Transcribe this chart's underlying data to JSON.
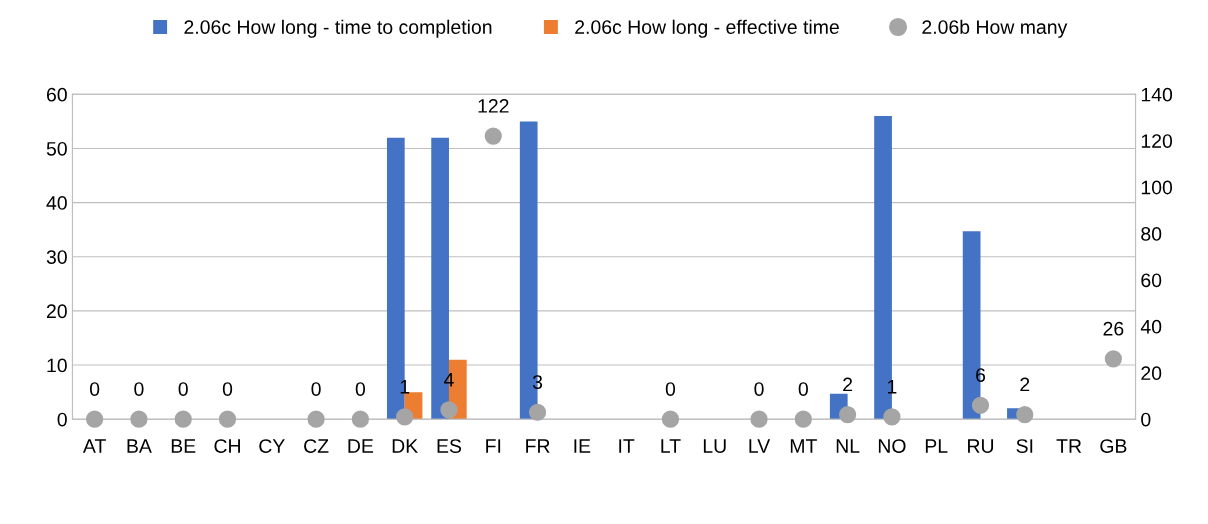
{
  "chart_data": {
    "type": "bar",
    "categories": [
      "AT",
      "BA",
      "BE",
      "CH",
      "CY",
      "CZ",
      "DE",
      "DK",
      "ES",
      "FI",
      "FR",
      "IE",
      "IT",
      "LT",
      "LU",
      "LV",
      "MT",
      "NL",
      "NO",
      "PL",
      "RU",
      "SI",
      "TR",
      "GB"
    ],
    "series": [
      {
        "name": "2.06c How long - time to completion",
        "color": "#4472c4",
        "values": [
          null,
          null,
          null,
          null,
          null,
          null,
          null,
          52,
          52,
          null,
          55,
          null,
          null,
          null,
          null,
          null,
          null,
          4.7,
          56,
          null,
          34.7,
          2,
          null,
          null
        ]
      },
      {
        "name": "2.06c How long - effective time",
        "color": "#ed7d31",
        "values": [
          null,
          null,
          null,
          null,
          null,
          null,
          null,
          5,
          11,
          null,
          null,
          null,
          null,
          null,
          null,
          null,
          null,
          null,
          null,
          null,
          null,
          null,
          null,
          null
        ]
      },
      {
        "name": "2.06b How many",
        "color": "#a5a5a5",
        "type": "scatter",
        "axis": "y2",
        "marker": "circle",
        "values": [
          0,
          0,
          0,
          0,
          null,
          0,
          0,
          1,
          4,
          122,
          3,
          null,
          null,
          0,
          null,
          0,
          0,
          2,
          1,
          null,
          6,
          2,
          null,
          26
        ],
        "value_labels": [
          "0",
          "0",
          "0",
          "0",
          null,
          "0",
          "0",
          "1",
          "4",
          "122",
          "3",
          null,
          null,
          "0",
          null,
          "0",
          "0",
          "2",
          "1",
          null,
          "6",
          "2",
          null,
          "26"
        ]
      }
    ],
    "ylim": [
      0,
      60
    ],
    "yticks": [
      0,
      10,
      20,
      30,
      40,
      50,
      60
    ],
    "y2lim": [
      0,
      140
    ],
    "y2ticks": [
      0,
      20,
      40,
      60,
      80,
      100,
      120,
      140
    ],
    "grid": "y",
    "legend": "top"
  }
}
